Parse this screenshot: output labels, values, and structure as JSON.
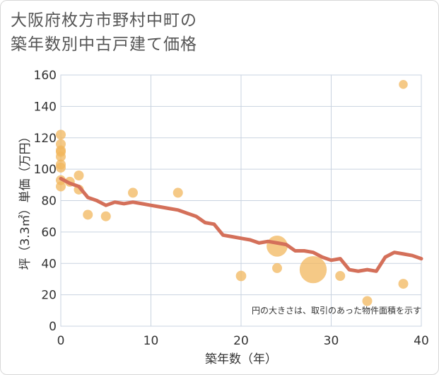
{
  "title_lines": [
    "大阪府枚方市野村中町の",
    "築年数別中古戸建て価格"
  ],
  "chart_data": {
    "type": "scatter",
    "title": "大阪府枚方市野村中町の築年数別中古戸建て価格",
    "xlabel": "築年数（年）",
    "ylabel": "坪（3.3㎡）単価（万円）",
    "xlim": [
      0,
      40
    ],
    "ylim": [
      0,
      160
    ],
    "xticks": [
      0,
      10,
      20,
      30,
      40
    ],
    "yticks": [
      0,
      20,
      40,
      60,
      80,
      100,
      120,
      140,
      160
    ],
    "grid": true,
    "note": "円の大きさは、取引のあった物件面積を示す",
    "colors": {
      "bubble": "#f2b75e",
      "line": "#d4705a",
      "grid": "#c9d3e0"
    },
    "scatter_points": [
      {
        "x": 0,
        "y": 122,
        "size": 1
      },
      {
        "x": 0,
        "y": 116,
        "size": 1
      },
      {
        "x": 0,
        "y": 112,
        "size": 1
      },
      {
        "x": 0,
        "y": 111,
        "size": 1
      },
      {
        "x": 0,
        "y": 108,
        "size": 1
      },
      {
        "x": 0,
        "y": 103,
        "size": 1
      },
      {
        "x": 0,
        "y": 101,
        "size": 1
      },
      {
        "x": 0,
        "y": 93,
        "size": 1
      },
      {
        "x": 0,
        "y": 89,
        "size": 1
      },
      {
        "x": 1,
        "y": 92,
        "size": 1
      },
      {
        "x": 2,
        "y": 96,
        "size": 1
      },
      {
        "x": 2,
        "y": 87,
        "size": 1
      },
      {
        "x": 3,
        "y": 71,
        "size": 1
      },
      {
        "x": 5,
        "y": 70,
        "size": 1
      },
      {
        "x": 8,
        "y": 85,
        "size": 1
      },
      {
        "x": 13,
        "y": 85,
        "size": 1
      },
      {
        "x": 20,
        "y": 32,
        "size": 1.1
      },
      {
        "x": 24,
        "y": 51,
        "size": 4.5
      },
      {
        "x": 24,
        "y": 37,
        "size": 1
      },
      {
        "x": 28,
        "y": 36,
        "size": 7.5
      },
      {
        "x": 31,
        "y": 32,
        "size": 1
      },
      {
        "x": 34,
        "y": 16,
        "size": 1
      },
      {
        "x": 38,
        "y": 154,
        "size": 0.8
      },
      {
        "x": 38,
        "y": 27,
        "size": 1
      }
    ],
    "trend_line": {
      "x": [
        0,
        1,
        2,
        3,
        4,
        5,
        6,
        7,
        8,
        9,
        10,
        11,
        12,
        13,
        14,
        15,
        16,
        17,
        18,
        19,
        20,
        21,
        22,
        23,
        24,
        25,
        26,
        27,
        28,
        29,
        30,
        31,
        32,
        33,
        34,
        35,
        36,
        37,
        38,
        39,
        40
      ],
      "y": [
        94,
        91,
        89,
        82,
        80,
        77,
        79,
        78,
        79,
        78,
        77,
        76,
        75,
        74,
        72,
        70,
        66,
        65,
        58,
        57,
        56,
        55,
        53,
        54,
        53,
        52,
        48,
        48,
        47,
        44,
        42,
        43,
        36,
        35,
        36,
        35,
        44,
        47,
        46,
        45,
        43
      ]
    }
  }
}
